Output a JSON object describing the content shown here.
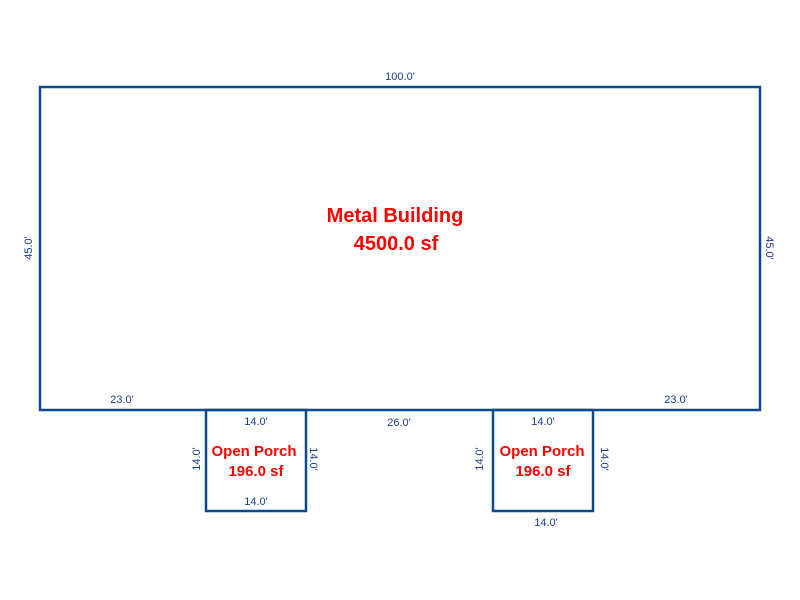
{
  "colors": {
    "walls": "#0d4a8c",
    "dimensions": "#1a3d8f",
    "area_labels": "#ff0000"
  },
  "main_building": {
    "name": "Metal Building",
    "area": "4500.0 sf",
    "dims": {
      "top": "100.0'",
      "left": "45.0'",
      "right": "45.0'",
      "bottom_left": "23.0'",
      "bottom_middle": "26.0'",
      "bottom_right": "23.0'"
    }
  },
  "porches": [
    {
      "name": "Open Porch",
      "area": "196.0 sf",
      "dims": {
        "top": "14.0'",
        "bottom": "14.0'",
        "left": "14.0'",
        "right": "14.0'"
      }
    },
    {
      "name": "Open Porch",
      "area": "196.0 sf",
      "dims": {
        "top": "14.0'",
        "bottom": "14.0'",
        "left": "14.0'",
        "right": "14.0'"
      }
    }
  ]
}
